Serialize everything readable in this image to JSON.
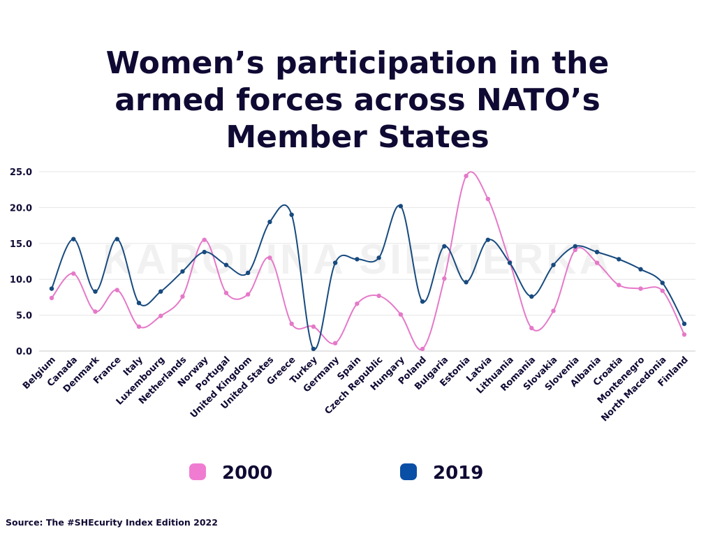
{
  "title_lines": [
    "Women’s participation in the",
    "armed forces across NATO’s",
    "Member States"
  ],
  "watermark": "KAROLINA SIEKIERKA",
  "source": "Source: The #SHEcurity Index Edition 2022",
  "chart_data": {
    "type": "line",
    "curve": "smooth",
    "categories": [
      "Belgium",
      "Canada",
      "Denmark",
      "France",
      "Italy",
      "Luxembourg",
      "Netherlands",
      "Norway",
      "Portugal",
      "United Kingdom",
      "United States",
      "Greece",
      "Turkey",
      "Germany",
      "Spain",
      "Czech Republic",
      "Hungary",
      "Poland",
      "Bulgaria",
      "Estonia",
      "Latvia",
      "Lithuania",
      "Romania",
      "Slovakia",
      "Slovenia",
      "Albania",
      "Croatia",
      "Montenegro",
      "North Macedonia",
      "Finland"
    ],
    "series": [
      {
        "name": "2000",
        "color": "#e579c8",
        "values": [
          7.4,
          10.8,
          5.5,
          8.5,
          3.4,
          4.9,
          7.6,
          15.5,
          8.1,
          7.9,
          13.0,
          3.8,
          3.4,
          1.1,
          6.6,
          7.7,
          5.1,
          0.3,
          10.1,
          24.4,
          21.2,
          12.4,
          3.2,
          5.6,
          14.1,
          12.3,
          9.2,
          8.7,
          8.4,
          2.3
        ]
      },
      {
        "name": "2019",
        "color": "#174a7e",
        "values": [
          8.7,
          15.6,
          8.3,
          15.6,
          6.7,
          8.3,
          11.1,
          13.8,
          12.0,
          10.9,
          18.0,
          19.0,
          0.3,
          12.3,
          12.8,
          13.0,
          20.2,
          6.9,
          14.6,
          9.6,
          15.5,
          12.3,
          7.6,
          12.0,
          14.6,
          13.8,
          12.8,
          11.4,
          9.5,
          3.8
        ]
      }
    ],
    "ylim": [
      0,
      25
    ],
    "y_ticks": [
      "0.0",
      "5.0",
      "10.0",
      "15.0",
      "20.0",
      "25.0"
    ],
    "grid": true,
    "legend_position": "bottom",
    "legend_colors": {
      "2000": "#f07cd2",
      "2019": "#0a4fa6"
    }
  }
}
